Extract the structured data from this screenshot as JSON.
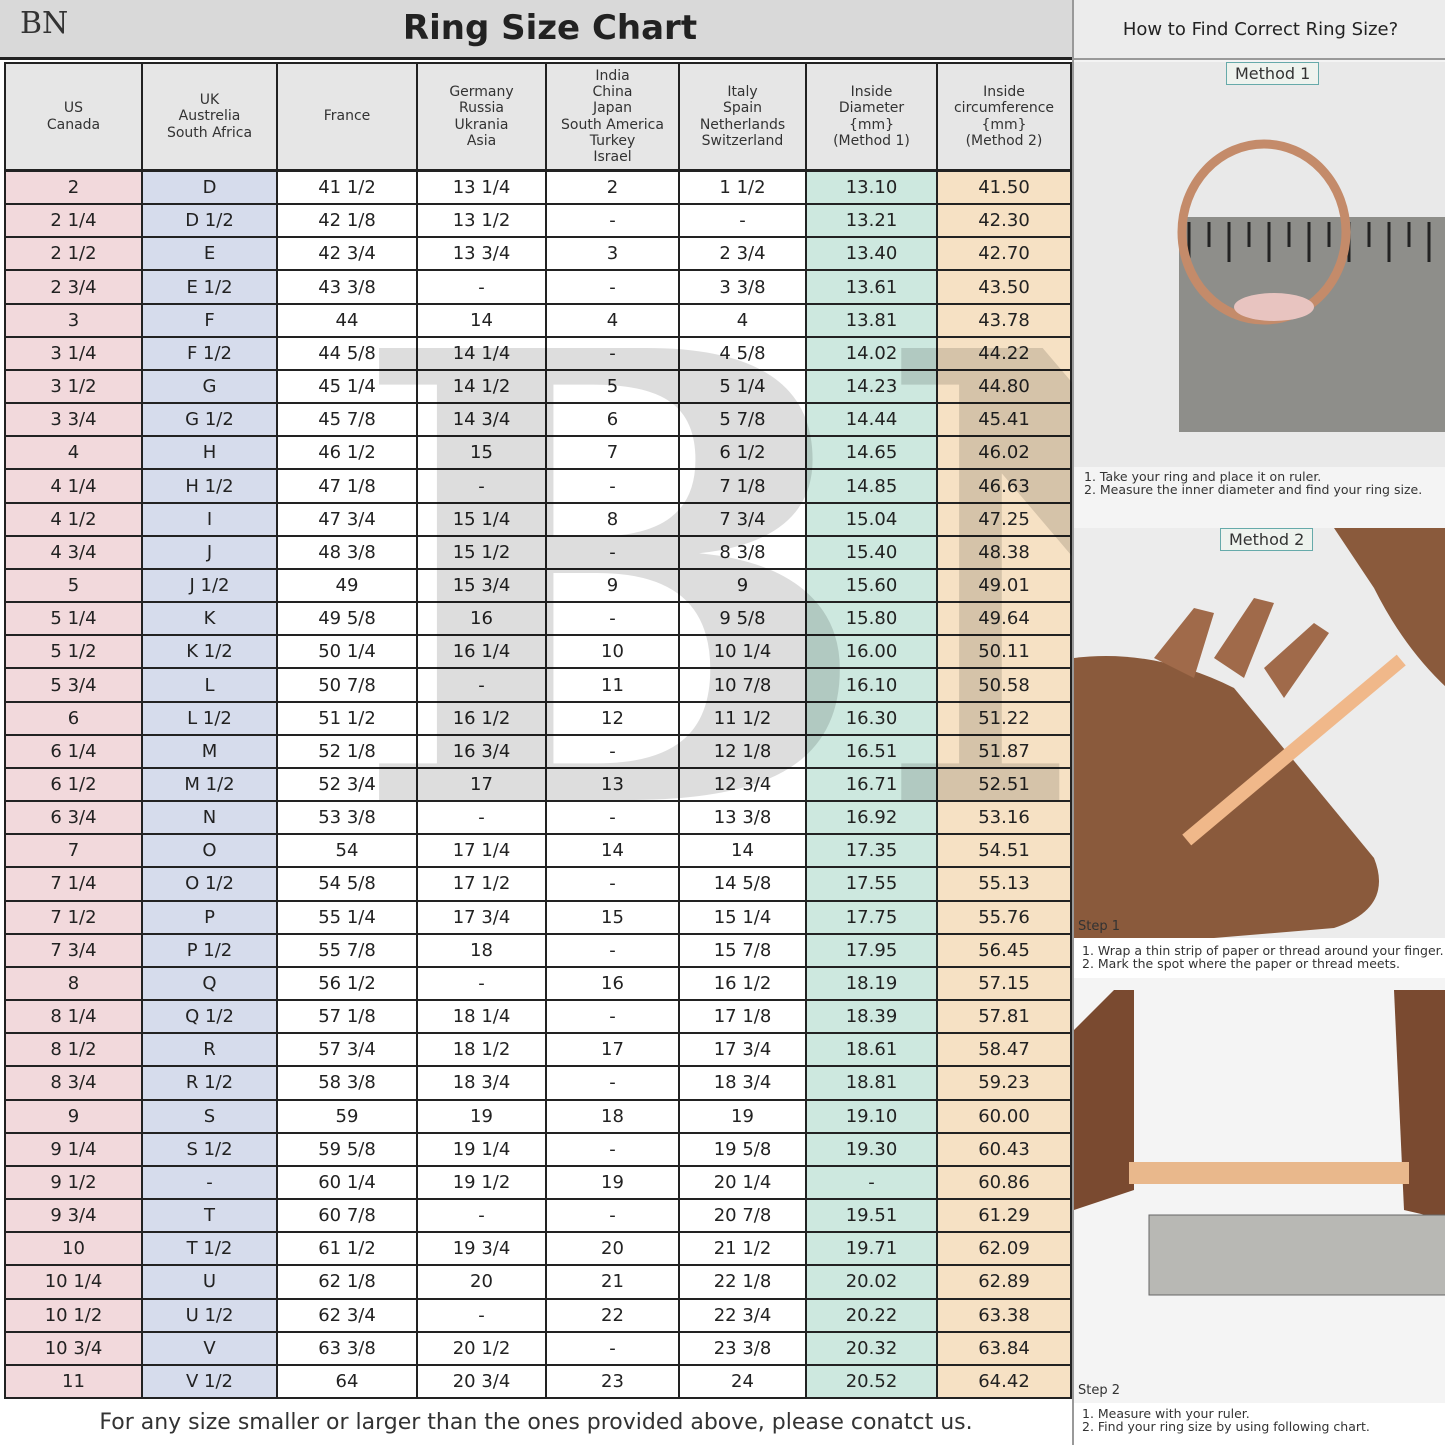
{
  "logo": "BN",
  "title": "Ring Size Chart",
  "side_title": "How to Find Correct Ring Size?",
  "table": {
    "headers": [
      [
        "US",
        "Canada"
      ],
      [
        "UK",
        "Austrelia",
        "South Africa"
      ],
      [
        "France"
      ],
      [
        "Germany",
        "Russia",
        "Ukrania",
        "Asia"
      ],
      [
        "India",
        "China",
        "Japan",
        "South America",
        "Turkey",
        "Israel"
      ],
      [
        "Italy",
        "Spain",
        "Netherlands",
        "Switzerland"
      ],
      [
        "Inside",
        "Diameter",
        "{mm}",
        "(Method 1)"
      ],
      [
        "Inside",
        "circumference",
        "{mm}",
        "(Method 2)"
      ]
    ],
    "rows": [
      [
        "2",
        "D",
        "41 1/2",
        "13 1/4",
        "2",
        "1 1/2",
        "13.10",
        "41.50"
      ],
      [
        "2 1/4",
        "D 1/2",
        "42 1/8",
        "13 1/2",
        "-",
        "-",
        "13.21",
        "42.30"
      ],
      [
        "2 1/2",
        "E",
        "42 3/4",
        "13 3/4",
        "3",
        "2 3/4",
        "13.40",
        "42.70"
      ],
      [
        "2 3/4",
        "E 1/2",
        "43 3/8",
        "-",
        "-",
        "3 3/8",
        "13.61",
        "43.50"
      ],
      [
        "3",
        "F",
        "44",
        "14",
        "4",
        "4",
        "13.81",
        "43.78"
      ],
      [
        "3 1/4",
        "F 1/2",
        "44 5/8",
        "14 1/4",
        "-",
        "4 5/8",
        "14.02",
        "44.22"
      ],
      [
        "3 1/2",
        "G",
        "45 1/4",
        "14 1/2",
        "5",
        "5 1/4",
        "14.23",
        "44.80"
      ],
      [
        "3 3/4",
        "G 1/2",
        "45 7/8",
        "14 3/4",
        "6",
        "5 7/8",
        "14.44",
        "45.41"
      ],
      [
        "4",
        "H",
        "46 1/2",
        "15",
        "7",
        "6 1/2",
        "14.65",
        "46.02"
      ],
      [
        "4 1/4",
        "H 1/2",
        "47 1/8",
        "-",
        "-",
        "7 1/8",
        "14.85",
        "46.63"
      ],
      [
        "4 1/2",
        "I",
        "47 3/4",
        "15 1/4",
        "8",
        "7 3/4",
        "15.04",
        "47.25"
      ],
      [
        "4 3/4",
        "J",
        "48 3/8",
        "15 1/2",
        "-",
        "8 3/8",
        "15.40",
        "48.38"
      ],
      [
        "5",
        "J 1/2",
        "49",
        "15 3/4",
        "9",
        "9",
        "15.60",
        "49.01"
      ],
      [
        "5 1/4",
        "K",
        "49 5/8",
        "16",
        "-",
        "9 5/8",
        "15.80",
        "49.64"
      ],
      [
        "5 1/2",
        "K 1/2",
        "50 1/4",
        "16 1/4",
        "10",
        "10 1/4",
        "16.00",
        "50.11"
      ],
      [
        "5 3/4",
        "L",
        "50 7/8",
        "-",
        "11",
        "10 7/8",
        "16.10",
        "50.58"
      ],
      [
        "6",
        "L 1/2",
        "51 1/2",
        "16 1/2",
        "12",
        "11 1/2",
        "16.30",
        "51.22"
      ],
      [
        "6 1/4",
        "M",
        "52 1/8",
        "16 3/4",
        "-",
        "12 1/8",
        "16.51",
        "51.87"
      ],
      [
        "6 1/2",
        "M 1/2",
        "52 3/4",
        "17",
        "13",
        "12 3/4",
        "16.71",
        "52.51"
      ],
      [
        "6 3/4",
        "N",
        "53 3/8",
        "-",
        "-",
        "13 3/8",
        "16.92",
        "53.16"
      ],
      [
        "7",
        "O",
        "54",
        "17 1/4",
        "14",
        "14",
        "17.35",
        "54.51"
      ],
      [
        "7 1/4",
        "O 1/2",
        "54 5/8",
        "17 1/2",
        "-",
        "14 5/8",
        "17.55",
        "55.13"
      ],
      [
        "7 1/2",
        "P",
        "55 1/4",
        "17 3/4",
        "15",
        "15 1/4",
        "17.75",
        "55.76"
      ],
      [
        "7 3/4",
        "P 1/2",
        "55 7/8",
        "18",
        "-",
        "15 7/8",
        "17.95",
        "56.45"
      ],
      [
        "8",
        "Q",
        "56 1/2",
        "-",
        "16",
        "16 1/2",
        "18.19",
        "57.15"
      ],
      [
        "8 1/4",
        "Q 1/2",
        "57 1/8",
        "18 1/4",
        "-",
        "17 1/8",
        "18.39",
        "57.81"
      ],
      [
        "8 1/2",
        "R",
        "57 3/4",
        "18 1/2",
        "17",
        "17 3/4",
        "18.61",
        "58.47"
      ],
      [
        "8 3/4",
        "R 1/2",
        "58 3/8",
        "18 3/4",
        "-",
        "18 3/4",
        "18.81",
        "59.23"
      ],
      [
        "9",
        "S",
        "59",
        "19",
        "18",
        "19",
        "19.10",
        "60.00"
      ],
      [
        "9 1/4",
        "S 1/2",
        "59 5/8",
        "19 1/4",
        "-",
        "19 5/8",
        "19.30",
        "60.43"
      ],
      [
        "9 1/2",
        "-",
        "60 1/4",
        "19 1/2",
        "19",
        "20 1/4",
        "-",
        "60.86"
      ],
      [
        "9 3/4",
        "T",
        "60 7/8",
        "-",
        "-",
        "20 7/8",
        "19.51",
        "61.29"
      ],
      [
        "10",
        "T 1/2",
        "61 1/2",
        "19 3/4",
        "20",
        "21 1/2",
        "19.71",
        "62.09"
      ],
      [
        "10 1/4",
        "U",
        "62 1/8",
        "20",
        "21",
        "22 1/8",
        "20.02",
        "62.89"
      ],
      [
        "10 1/2",
        "U 1/2",
        "62 3/4",
        "-",
        "22",
        "22 3/4",
        "20.22",
        "63.38"
      ],
      [
        "10 3/4",
        "V",
        "63 3/8",
        "20 1/2",
        "-",
        "23 3/8",
        "20.32",
        "63.84"
      ],
      [
        "11",
        "V 1/2",
        "64",
        "20 3/4",
        "23",
        "24",
        "20.52",
        "64.42"
      ]
    ]
  },
  "footer": "For any size smaller or larger than the ones provided above, please conatct us.",
  "method1": {
    "label": "Method 1",
    "steps": [
      "1. Take your ring and place it on ruler.",
      "2. Measure the inner diameter and find your ring size."
    ]
  },
  "method2": {
    "label": "Method 2",
    "step1": {
      "label": "Step 1",
      "steps": [
        "1. Wrap a thin strip of paper or thread around your finger.",
        "2. Mark the spot where the paper or thread meets."
      ]
    },
    "step2": {
      "label": "Step 2",
      "steps": [
        "1. Measure with your ruler.",
        "2. Find your ring size by using following chart."
      ]
    }
  }
}
